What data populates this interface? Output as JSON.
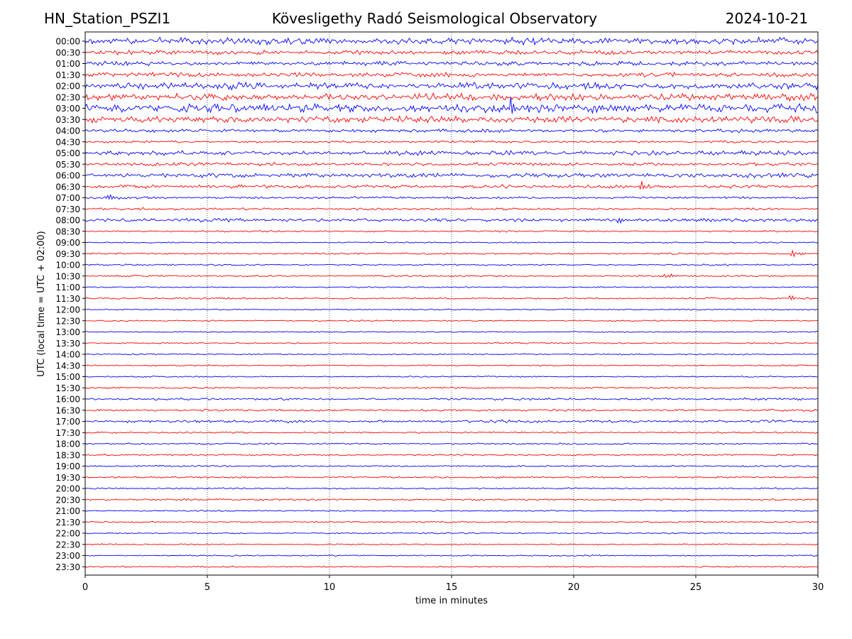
{
  "header": {
    "station": "HN_Station_PSZI1",
    "observatory": "Kövesligethy Radó Seismological Observatory",
    "date": "2024-10-21"
  },
  "chart_data": {
    "type": "line",
    "title": "Kövesligethy Radó Seismological Observatory",
    "xlabel": "time in minutes",
    "ylabel": "UTC (local time = UTC + 02:00)",
    "xlim": [
      0,
      30
    ],
    "x_ticks": [
      0,
      5,
      10,
      15,
      20,
      25,
      30
    ],
    "x_gridlines": [
      5,
      10,
      15,
      20,
      25
    ],
    "grid": "vertical dotted",
    "trace_colors": [
      "#0000ff",
      "#ff0000"
    ],
    "rows": [
      "00:00",
      "00:30",
      "01:00",
      "01:30",
      "02:00",
      "02:30",
      "03:00",
      "03:30",
      "04:00",
      "04:30",
      "05:00",
      "05:30",
      "06:00",
      "06:30",
      "07:00",
      "07:30",
      "08:00",
      "08:30",
      "09:00",
      "09:30",
      "10:00",
      "10:30",
      "11:00",
      "11:30",
      "12:00",
      "12:30",
      "13:00",
      "13:30",
      "14:00",
      "14:30",
      "15:00",
      "15:30",
      "16:00",
      "16:30",
      "17:00",
      "17:30",
      "18:00",
      "18:30",
      "19:00",
      "19:30",
      "20:00",
      "20:30",
      "21:00",
      "21:30",
      "22:00",
      "22:30",
      "23:00",
      "23:30"
    ],
    "noise_level": [
      6,
      4,
      4,
      4,
      6,
      6,
      8,
      6,
      3,
      2,
      4,
      3,
      4,
      3,
      2,
      2,
      3,
      1.5,
      1.2,
      1.5,
      1.5,
      1.5,
      1.2,
      1.5,
      1.2,
      1.2,
      1.2,
      1.2,
      1.2,
      1.2,
      1.2,
      1.5,
      2,
      2,
      2.5,
      1.5,
      1.5,
      1.5,
      1.5,
      1.5,
      1.5,
      1.5,
      1.2,
      1.2,
      1.2,
      1.2,
      1.2,
      1.2
    ],
    "events": [
      {
        "row": 6,
        "minute": 17.5,
        "amplitude": 14
      },
      {
        "row": 13,
        "minute": 22.8,
        "amplitude": 9
      },
      {
        "row": 14,
        "minute": 1.0,
        "amplitude": 6
      },
      {
        "row": 16,
        "minute": 21.8,
        "amplitude": 7
      },
      {
        "row": 19,
        "minute": 29.0,
        "amplitude": 5
      },
      {
        "row": 21,
        "minute": 23.8,
        "amplitude": 7
      },
      {
        "row": 23,
        "minute": 28.9,
        "amplitude": 4
      }
    ]
  }
}
